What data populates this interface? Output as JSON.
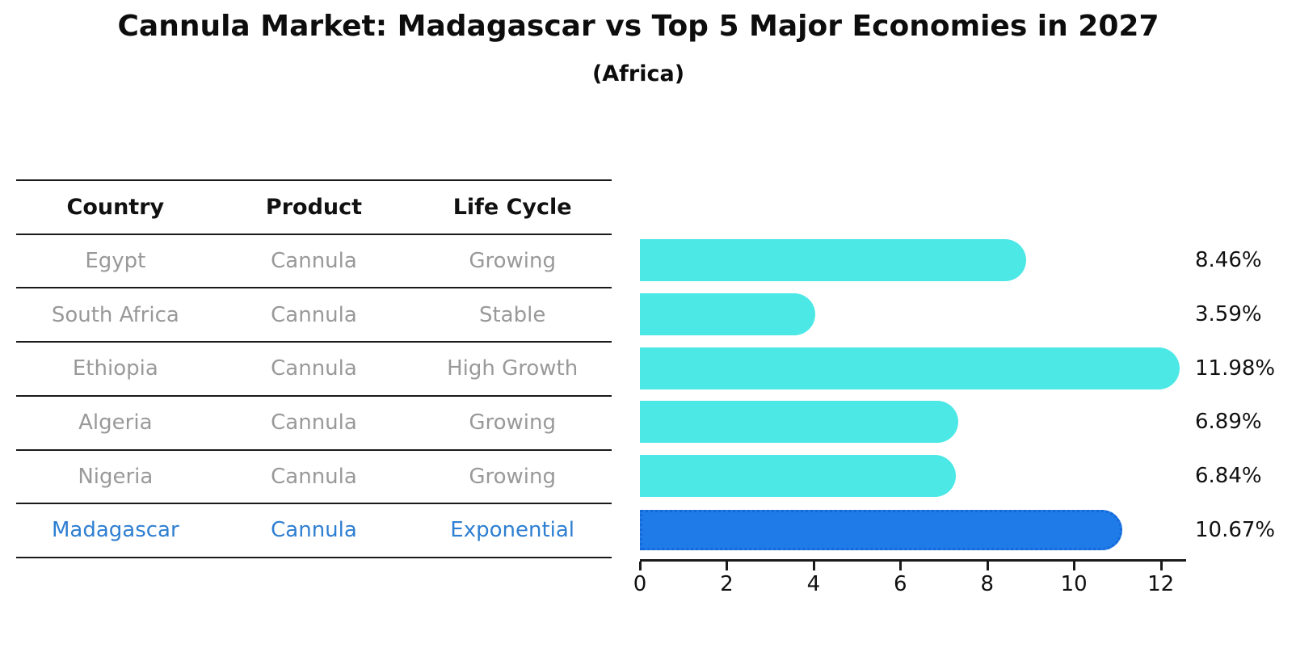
{
  "title": "Cannula Market: Madagascar vs Top 5 Major Economies in 2027",
  "subtitle": "(Africa)",
  "table": {
    "headers": [
      "Country",
      "Product",
      "Life Cycle"
    ],
    "rows": [
      {
        "country": "Egypt",
        "product": "Cannula",
        "life_cycle": "Growing",
        "highlight": false
      },
      {
        "country": "South Africa",
        "product": "Cannula",
        "life_cycle": "Stable",
        "highlight": false
      },
      {
        "country": "Ethiopia",
        "product": "Cannula",
        "life_cycle": "High Growth",
        "highlight": false
      },
      {
        "country": "Algeria",
        "product": "Cannula",
        "life_cycle": "Growing",
        "highlight": false
      },
      {
        "country": "Nigeria",
        "product": "Cannula",
        "life_cycle": "Growing",
        "highlight": false
      },
      {
        "country": "Madagascar",
        "product": "Cannula",
        "life_cycle": "Exponential",
        "highlight": true
      }
    ]
  },
  "chart_data": {
    "type": "bar",
    "orientation": "horizontal",
    "title": "Cannula Market: Madagascar vs Top 5 Major Economies in 2027",
    "subtitle": "(Africa)",
    "categories": [
      "Egypt",
      "South Africa",
      "Ethiopia",
      "Algeria",
      "Nigeria",
      "Madagascar"
    ],
    "values": [
      8.46,
      3.59,
      11.98,
      6.89,
      6.84,
      10.67
    ],
    "value_labels": [
      "8.46%",
      "3.59%",
      "11.98%",
      "6.89%",
      "6.84%",
      "10.67%"
    ],
    "x_ticks": [
      0,
      2,
      4,
      6,
      8,
      10,
      12
    ],
    "xlim": [
      0,
      12.57
    ],
    "highlight_index": 5,
    "bar_color": "#4be8e6",
    "highlight_color": "#1e7be8",
    "grid": false,
    "legend": false
  },
  "colors": {
    "bar": "#4be8e6",
    "highlight_bar": "#1e7be8",
    "highlight_text": "#2e7fd1",
    "row_text": "#999999",
    "heading_text": "#111111",
    "line": "#1a1a1a"
  }
}
